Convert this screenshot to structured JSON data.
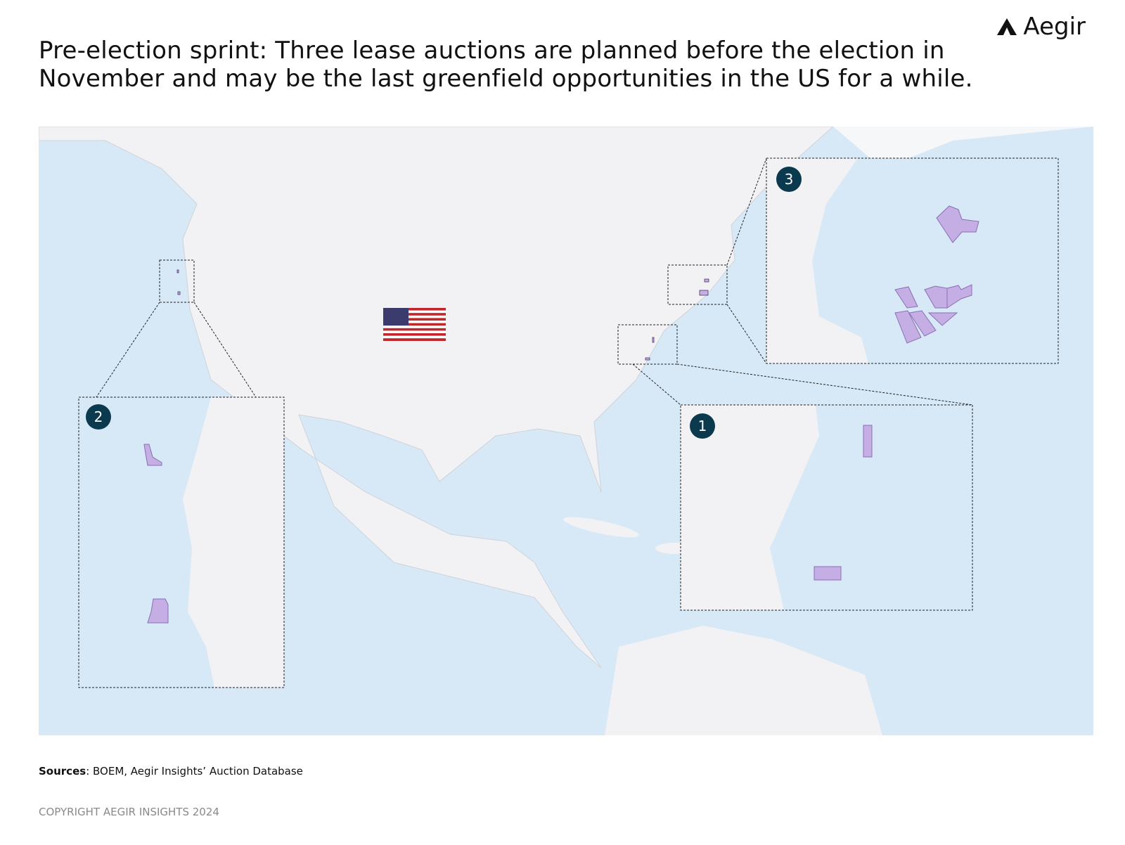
{
  "header": {
    "logo": "Aegir",
    "title": "Pre-election sprint: Three lease auctions are planned before the election in November and may be the last greenfield opportunities in the US for a while."
  },
  "map": {
    "insets": [
      {
        "label": "1"
      },
      {
        "label": "2"
      },
      {
        "label": "3"
      }
    ]
  },
  "footer": {
    "sources_label": "Sources",
    "sources_text": ": BOEM, Aegir Insights’ Auction Database",
    "copyright": "COPYRIGHT AEGIR INSIGHTS 2024"
  }
}
